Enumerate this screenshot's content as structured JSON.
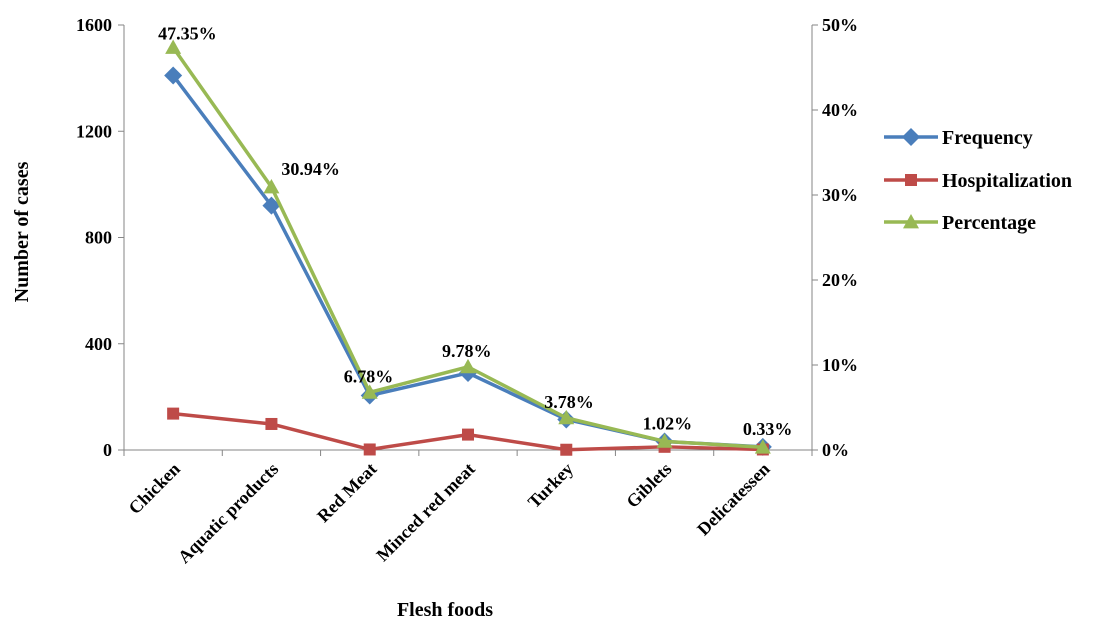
{
  "chart_data": {
    "type": "line",
    "xlabel": "Flesh foods",
    "ylabel": "Number of cases",
    "categories": [
      "Chicken",
      "Aquatic products",
      "Red Meat",
      "Minced red meat",
      "Turkey",
      "Giblets",
      "Delicatessen"
    ],
    "left_axis": {
      "ylim": [
        0,
        1600
      ],
      "ticks": [
        "0",
        "400",
        "800",
        "1200",
        "1600"
      ]
    },
    "right_axis": {
      "ylim": [
        0,
        50
      ],
      "ticks": [
        "0%",
        "10%",
        "20%",
        "30%",
        "40%",
        "50%"
      ]
    },
    "series": [
      {
        "name": "Frequency",
        "axis": "left",
        "color": "#4a7ebb",
        "marker": "diamond",
        "values": [
          1410,
          920,
          205,
          290,
          115,
          32,
          12
        ]
      },
      {
        "name": "Hospitalization",
        "axis": "left",
        "color": "#be4b48",
        "marker": "square",
        "values": [
          137,
          98,
          2,
          58,
          1,
          12,
          2
        ]
      },
      {
        "name": "Percentage",
        "axis": "right",
        "color": "#98b954",
        "marker": "triangle",
        "values": [
          47.35,
          30.94,
          6.78,
          9.78,
          3.78,
          1.02,
          0.33
        ],
        "labels": [
          "47.35%",
          "30.94%",
          "6.78%",
          "9.78%",
          "3.78%",
          "1.02%",
          "0.33%"
        ]
      }
    ],
    "grid": false,
    "legend_position": "right"
  }
}
